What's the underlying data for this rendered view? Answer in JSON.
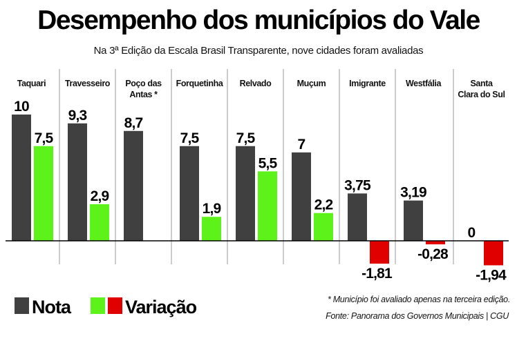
{
  "chart_data": {
    "type": "bar",
    "title": "Desempenho dos municípios do Vale",
    "subtitle": "Na 3ª Edição da  Escala Brasil Transparente, nove cidades foram avaliadas",
    "categories": [
      "Taquari",
      "Travesseiro",
      "Poço das\nAntas *",
      "Forquetinha",
      "Relvado",
      "Muçum",
      "Imigrante",
      "Westfália",
      "Santa\nClara do Sul"
    ],
    "series": [
      {
        "name": "Nota",
        "values": [
          10,
          9.3,
          8.7,
          7.5,
          7.5,
          7,
          3.75,
          3.19,
          0
        ]
      },
      {
        "name": "Variação",
        "values": [
          7.5,
          2.9,
          null,
          1.9,
          5.5,
          2.2,
          -1.81,
          -0.28,
          -1.94
        ]
      }
    ],
    "ylim": [
      -2,
      10
    ],
    "grid": false,
    "legend_placement": "bottom-left",
    "colors": {
      "nota": "#404040",
      "variacao_positive": "#5cf21a",
      "variacao_negative": "#e00000",
      "separator": "#b0b0b0"
    },
    "decimal_separator": ","
  },
  "footnote": "* Município foi avaliado apenas na terceira edição.",
  "source": "Fonte: Panorama dos Governos Municipais | CGU"
}
